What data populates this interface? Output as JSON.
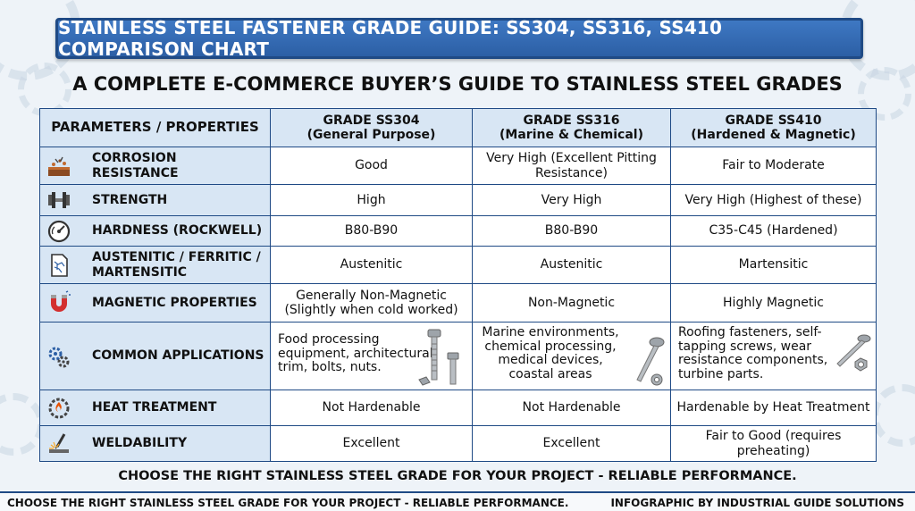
{
  "title": "STAINLESS STEEL FASTENER GRADE GUIDE: SS304, SS316, SS410 COMPARISON CHART",
  "subtitle": "A COMPLETE E-COMMERCE BUYER’S GUIDE TO STAINLESS STEEL GRADES",
  "table": {
    "headers": [
      {
        "label": "PARAMETERS / PROPERTIES",
        "sub": ""
      },
      {
        "label": "GRADE SS304",
        "sub": "(General Purpose)"
      },
      {
        "label": "GRADE SS316",
        "sub": "(Marine & Chemical)"
      },
      {
        "label": "GRADE SS410",
        "sub": "(Hardened & Magnetic)"
      }
    ],
    "rows": [
      {
        "param": "CORROSION RESISTANCE",
        "icon": "rusted-surface-icon",
        "ss304": "Good",
        "ss316": "Very High (Excellent Pitting Resistance)",
        "ss410": "Fair to Moderate"
      },
      {
        "param": "STRENGTH",
        "icon": "dumbbell-icon",
        "ss304": "High",
        "ss316": "Very High",
        "ss410": "Very High (Highest of these)"
      },
      {
        "param": "HARDNESS (ROCKWELL)",
        "icon": "gauge-icon",
        "ss304": "B80-B90",
        "ss316": "B80-B90",
        "ss410": "C35-C45 (Hardened)"
      },
      {
        "param": "AUSTENITIC / FERRITIC / MARTENSITIC",
        "icon": "microstructure-document-icon",
        "ss304": "Austenitic",
        "ss316": "Austenitic",
        "ss410": "Martensitic"
      },
      {
        "param": "MAGNETIC PROPERTIES",
        "icon": "magnet-icon",
        "ss304": "Generally Non-Magnetic (Slightly when cold worked)",
        "ss316": "Non-Magnetic",
        "ss410": "Highly Magnetic"
      },
      {
        "param": "COMMON APPLICATIONS",
        "icon": "gears-icon",
        "ss304": "Food processing equipment, architectural trim, bolts, nuts.",
        "ss316": "Marine environments, chemical processing, medical devices, coastal areas",
        "ss410": "Roofing fasteners, self-tapping screws, wear resistance components, turbine parts."
      },
      {
        "param": "HEAT TREATMENT",
        "icon": "heat-gear-icon",
        "ss304": "Not Hardenable",
        "ss316": "Not Hardenable",
        "ss410": "Hardenable by Heat Treatment"
      },
      {
        "param": "WELDABILITY",
        "icon": "welding-icon",
        "ss304": "Excellent",
        "ss316": "Excellent",
        "ss410": "Fair to Good (requires preheating)"
      }
    ]
  },
  "bottom_tagline": "CHOOSE THE RIGHT STAINLESS STEEL GRADE FOR YOUR PROJECT - RELIABLE PERFORMANCE.",
  "footer": {
    "left": "CHOOSE THE RIGHT STAINLESS STEEL GRADE FOR YOUR PROJECT - RELIABLE PERFORMANCE.",
    "right": "INFOGRAPHIC BY INDUSTRIAL GUIDE SOLUTIONS"
  },
  "colors": {
    "banner": "#2c5fa5",
    "border": "#1f4a85",
    "param_bg": "#d8e6f4"
  }
}
